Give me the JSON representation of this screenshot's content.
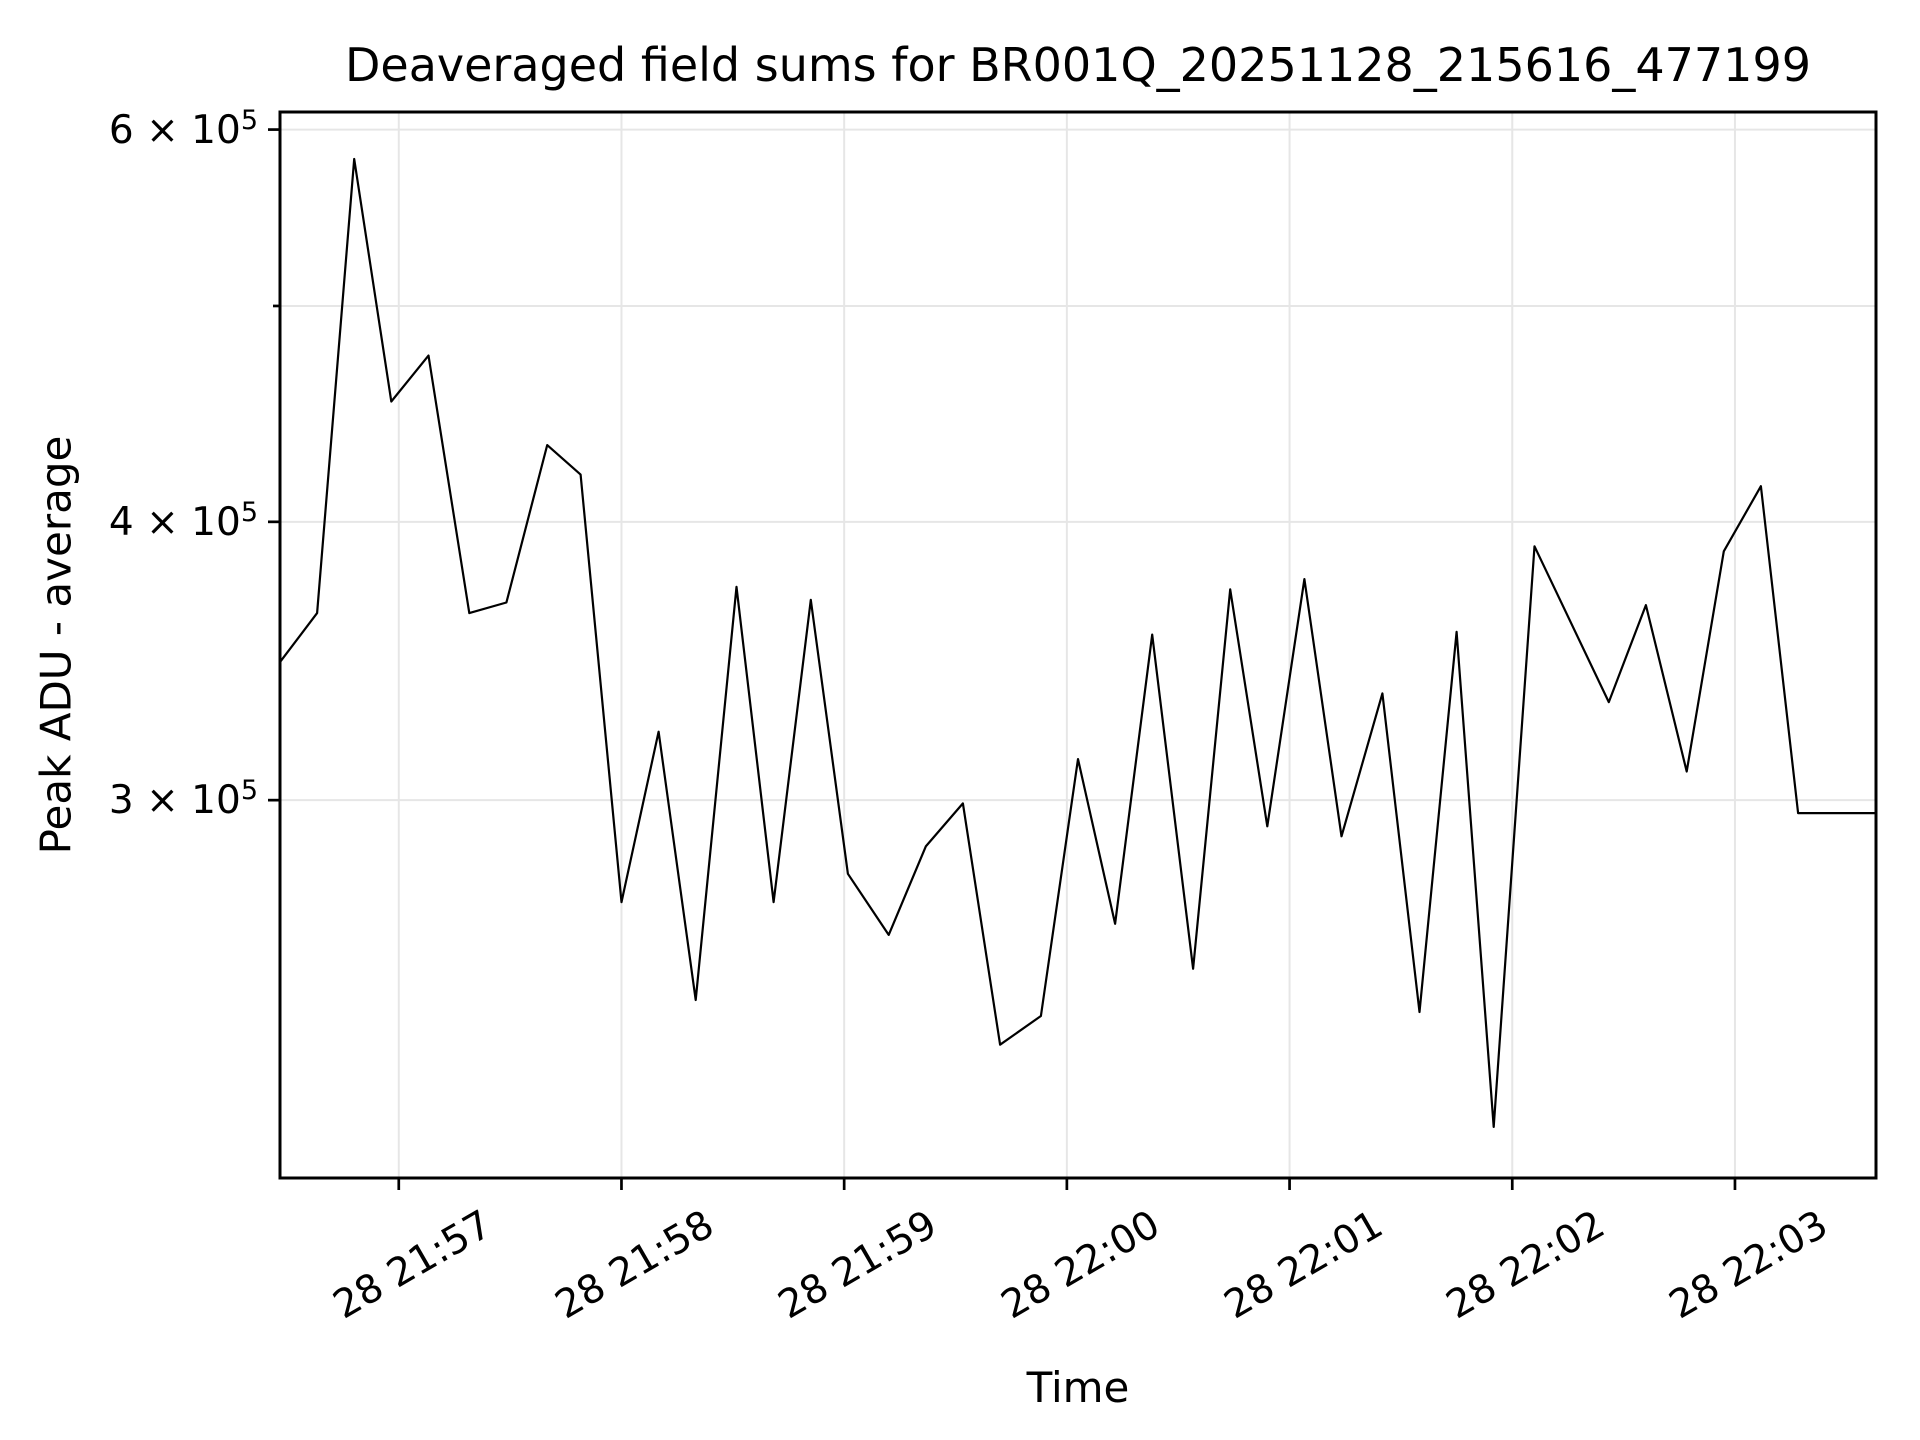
{
  "title": "Deaveraged field sums for BR001Q_20251128_215616_477199",
  "chart_data": {
    "type": "line",
    "title": "Deaveraged field sums for BR001Q_20251128_215616_477199",
    "xlabel": "Time",
    "ylabel": "Peak ADU - average",
    "date_day": "28",
    "series_name": "Peak ADU - average",
    "line_color": "#000000",
    "grid_color": "#e6e6e6",
    "background": "#ffffff",
    "y_scale": "log",
    "grid": true,
    "legend": "none",
    "x_window": [
      "21:56:28",
      "22:03:38"
    ],
    "y_window": [
      203000,
      611000
    ],
    "x": [
      "21:56:28",
      "21:56:38",
      "21:56:48",
      "21:56:58",
      "21:57:08",
      "21:57:19",
      "21:57:29",
      "21:57:40",
      "21:57:49",
      "21:58:00",
      "21:58:10",
      "21:58:20",
      "21:58:31",
      "21:58:41",
      "21:58:51",
      "21:59:01",
      "21:59:12",
      "21:59:22",
      "21:59:32",
      "21:59:42",
      "21:59:53",
      "22:00:03",
      "22:00:13",
      "22:00:23",
      "22:00:34",
      "22:00:44",
      "22:00:54",
      "22:01:04",
      "22:01:14",
      "22:01:25",
      "22:01:35",
      "22:01:45",
      "22:01:55",
      "22:02:06",
      "22:02:26",
      "22:02:36",
      "22:02:47",
      "22:02:57",
      "22:03:07",
      "22:03:17",
      "22:03:38"
    ],
    "y": [
      346000,
      364000,
      582000,
      453000,
      475000,
      364000,
      368000,
      433000,
      420000,
      270000,
      322000,
      244000,
      374000,
      270000,
      369000,
      278000,
      261000,
      286000,
      299000,
      233000,
      240000,
      313000,
      264000,
      356000,
      252000,
      373000,
      292000,
      377000,
      289000,
      335000,
      241000,
      357000,
      214000,
      390000,
      332000,
      367000,
      309000,
      388000,
      415000,
      296000,
      296000
    ],
    "x_ticks": [
      {
        "time": "21:57:00",
        "label": "28 21:57"
      },
      {
        "time": "21:58:00",
        "label": "28 21:58"
      },
      {
        "time": "21:59:00",
        "label": "28 21:59"
      },
      {
        "time": "22:00:00",
        "label": "28 22:00"
      },
      {
        "time": "22:01:00",
        "label": "28 22:01"
      },
      {
        "time": "22:02:00",
        "label": "28 22:02"
      },
      {
        "time": "22:03:00",
        "label": "28 22:03"
      }
    ],
    "y_ticks": [
      {
        "value": 600000,
        "mantissa": "6",
        "exp": "5",
        "label": "6 × 10^5",
        "minor": false
      },
      {
        "value": 500000,
        "mantissa": null,
        "exp": null,
        "label": null,
        "minor": true
      },
      {
        "value": 400000,
        "mantissa": "4",
        "exp": "5",
        "label": "4 × 10^5",
        "minor": false
      },
      {
        "value": 300000,
        "mantissa": "3",
        "exp": "5",
        "label": "3 × 10^5",
        "minor": false
      }
    ]
  }
}
